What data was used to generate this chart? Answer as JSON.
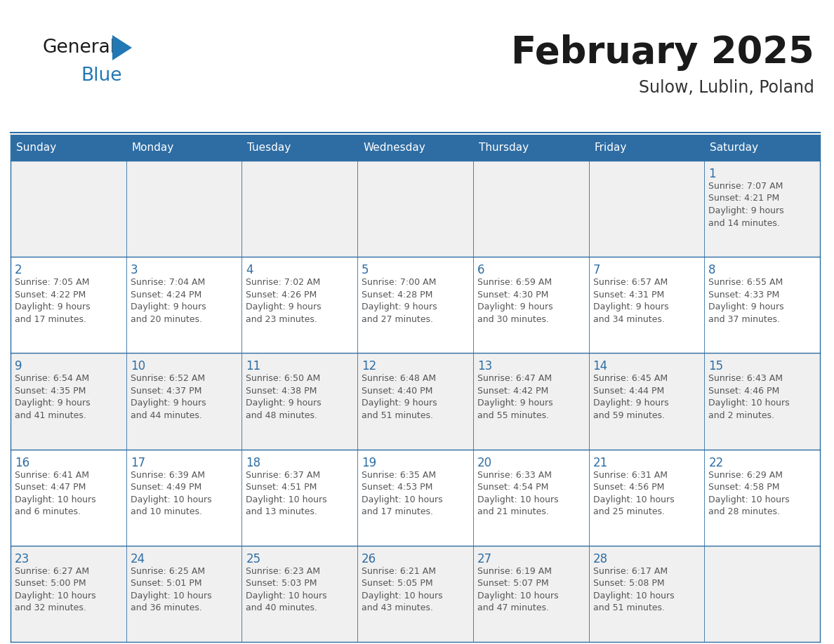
{
  "title": "February 2025",
  "subtitle": "Sulow, Lublin, Poland",
  "header_bg_color": "#2E6DA4",
  "header_text_color": "#FFFFFF",
  "cell_bg_white": "#FFFFFF",
  "cell_bg_gray": "#F0F0F0",
  "border_color": "#2E6DA4",
  "day_number_color": "#2E6DA4",
  "cell_text_color": "#555555",
  "title_color": "#1a1a1a",
  "subtitle_color": "#333333",
  "logo_color_general": "#1a1a1a",
  "logo_color_blue": "#2278b5",
  "logo_triangle_color": "#2278b5",
  "days_of_week": [
    "Sunday",
    "Monday",
    "Tuesday",
    "Wednesday",
    "Thursday",
    "Friday",
    "Saturday"
  ],
  "row_bg_colors": [
    "#F0F0F0",
    "#FFFFFF",
    "#F0F0F0",
    "#FFFFFF",
    "#F0F0F0"
  ],
  "calendar": [
    [
      "",
      "",
      "",
      "",
      "",
      "",
      "1\nSunrise: 7:07 AM\nSunset: 4:21 PM\nDaylight: 9 hours\nand 14 minutes."
    ],
    [
      "2\nSunrise: 7:05 AM\nSunset: 4:22 PM\nDaylight: 9 hours\nand 17 minutes.",
      "3\nSunrise: 7:04 AM\nSunset: 4:24 PM\nDaylight: 9 hours\nand 20 minutes.",
      "4\nSunrise: 7:02 AM\nSunset: 4:26 PM\nDaylight: 9 hours\nand 23 minutes.",
      "5\nSunrise: 7:00 AM\nSunset: 4:28 PM\nDaylight: 9 hours\nand 27 minutes.",
      "6\nSunrise: 6:59 AM\nSunset: 4:30 PM\nDaylight: 9 hours\nand 30 minutes.",
      "7\nSunrise: 6:57 AM\nSunset: 4:31 PM\nDaylight: 9 hours\nand 34 minutes.",
      "8\nSunrise: 6:55 AM\nSunset: 4:33 PM\nDaylight: 9 hours\nand 37 minutes."
    ],
    [
      "9\nSunrise: 6:54 AM\nSunset: 4:35 PM\nDaylight: 9 hours\nand 41 minutes.",
      "10\nSunrise: 6:52 AM\nSunset: 4:37 PM\nDaylight: 9 hours\nand 44 minutes.",
      "11\nSunrise: 6:50 AM\nSunset: 4:38 PM\nDaylight: 9 hours\nand 48 minutes.",
      "12\nSunrise: 6:48 AM\nSunset: 4:40 PM\nDaylight: 9 hours\nand 51 minutes.",
      "13\nSunrise: 6:47 AM\nSunset: 4:42 PM\nDaylight: 9 hours\nand 55 minutes.",
      "14\nSunrise: 6:45 AM\nSunset: 4:44 PM\nDaylight: 9 hours\nand 59 minutes.",
      "15\nSunrise: 6:43 AM\nSunset: 4:46 PM\nDaylight: 10 hours\nand 2 minutes."
    ],
    [
      "16\nSunrise: 6:41 AM\nSunset: 4:47 PM\nDaylight: 10 hours\nand 6 minutes.",
      "17\nSunrise: 6:39 AM\nSunset: 4:49 PM\nDaylight: 10 hours\nand 10 minutes.",
      "18\nSunrise: 6:37 AM\nSunset: 4:51 PM\nDaylight: 10 hours\nand 13 minutes.",
      "19\nSunrise: 6:35 AM\nSunset: 4:53 PM\nDaylight: 10 hours\nand 17 minutes.",
      "20\nSunrise: 6:33 AM\nSunset: 4:54 PM\nDaylight: 10 hours\nand 21 minutes.",
      "21\nSunrise: 6:31 AM\nSunset: 4:56 PM\nDaylight: 10 hours\nand 25 minutes.",
      "22\nSunrise: 6:29 AM\nSunset: 4:58 PM\nDaylight: 10 hours\nand 28 minutes."
    ],
    [
      "23\nSunrise: 6:27 AM\nSunset: 5:00 PM\nDaylight: 10 hours\nand 32 minutes.",
      "24\nSunrise: 6:25 AM\nSunset: 5:01 PM\nDaylight: 10 hours\nand 36 minutes.",
      "25\nSunrise: 6:23 AM\nSunset: 5:03 PM\nDaylight: 10 hours\nand 40 minutes.",
      "26\nSunrise: 6:21 AM\nSunset: 5:05 PM\nDaylight: 10 hours\nand 43 minutes.",
      "27\nSunrise: 6:19 AM\nSunset: 5:07 PM\nDaylight: 10 hours\nand 47 minutes.",
      "28\nSunrise: 6:17 AM\nSunset: 5:08 PM\nDaylight: 10 hours\nand 51 minutes.",
      ""
    ]
  ],
  "fig_width": 11.88,
  "fig_height": 9.18
}
